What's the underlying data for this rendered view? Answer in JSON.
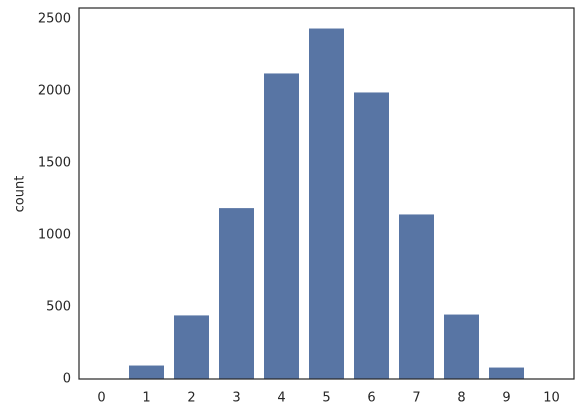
{
  "chart_data": {
    "type": "bar",
    "y_label": "count",
    "categories": [
      0,
      1,
      2,
      3,
      4,
      5,
      6,
      7,
      8,
      9,
      10
    ],
    "values": [
      3,
      97,
      445,
      1190,
      2125,
      2437,
      1993,
      1146,
      451,
      83,
      4
    ],
    "color": "#5875a4",
    "ylim": [
      0,
      2576
    ],
    "yticks": [
      0,
      500,
      1000,
      1500,
      2000,
      2500
    ],
    "grid": false
  }
}
